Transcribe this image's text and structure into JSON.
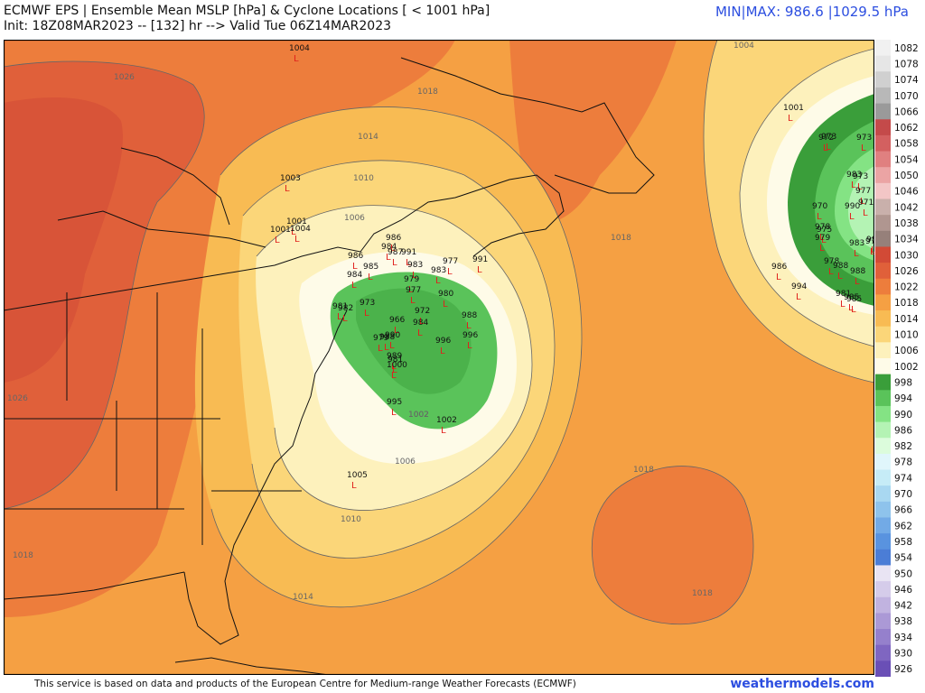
{
  "header": {
    "title": "ECMWF EPS | Ensemble Mean MSLP [hPa] & Cyclone Locations [ < 1001 hPa]",
    "subtitle": "Init: 18Z08MAR2023 -- [132] hr --> Valid Tue 06Z14MAR2023",
    "minmax": "MIN|MAX: 986.6 |1029.5 hPa"
  },
  "footer": {
    "credit": "This service is based on data and products of the European Centre for Medium-range Weather Forecasts (ECMWF)",
    "brand": "weathermodels.com"
  },
  "colors": {
    "accent": "#2c4ee0",
    "low_marker": "#e0201c"
  },
  "legend": {
    "entries": [
      {
        "label": "1082",
        "color": "#f1f1f1"
      },
      {
        "label": "1078",
        "color": "#e6e6e6"
      },
      {
        "label": "1074",
        "color": "#d0d0d0"
      },
      {
        "label": "1070",
        "color": "#b8b8b8"
      },
      {
        "label": "1066",
        "color": "#9a9a9a"
      },
      {
        "label": "1062",
        "color": "#c44a4a"
      },
      {
        "label": "1058",
        "color": "#d36060"
      },
      {
        "label": "1054",
        "color": "#e08080"
      },
      {
        "label": "1050",
        "color": "#eba4a4"
      },
      {
        "label": "1046",
        "color": "#f3c6c6"
      },
      {
        "label": "1042",
        "color": "#c9b0ab"
      },
      {
        "label": "1038",
        "color": "#b09690"
      },
      {
        "label": "1034",
        "color": "#96807a"
      },
      {
        "label": "1030",
        "color": "#d24a36"
      },
      {
        "label": "1026",
        "color": "#e0603a"
      },
      {
        "label": "1022",
        "color": "#ed7d3c"
      },
      {
        "label": "1018",
        "color": "#f5a043"
      },
      {
        "label": "1014",
        "color": "#f8bb53"
      },
      {
        "label": "1010",
        "color": "#fbd679"
      },
      {
        "label": "1006",
        "color": "#fdf1bc"
      },
      {
        "label": "1002",
        "color": "#fefbe8"
      },
      {
        "label": "998",
        "color": "#3a9e3a"
      },
      {
        "label": "994",
        "color": "#5ac35a"
      },
      {
        "label": "990",
        "color": "#84e384"
      },
      {
        "label": "986",
        "color": "#b4f3b4"
      },
      {
        "label": "982",
        "color": "#dcfcdc"
      },
      {
        "label": "978",
        "color": "#e0f6fb"
      },
      {
        "label": "974",
        "color": "#c6ecf7"
      },
      {
        "label": "970",
        "color": "#a9d8f1"
      },
      {
        "label": "966",
        "color": "#8ec3ec"
      },
      {
        "label": "962",
        "color": "#72aae6"
      },
      {
        "label": "958",
        "color": "#5993df"
      },
      {
        "label": "954",
        "color": "#4b7dd6"
      },
      {
        "label": "950",
        "color": "#e9e4f3"
      },
      {
        "label": "946",
        "color": "#d5ccea"
      },
      {
        "label": "942",
        "color": "#c1b3e0"
      },
      {
        "label": "938",
        "color": "#ab99d6"
      },
      {
        "label": "934",
        "color": "#9580cc"
      },
      {
        "label": "930",
        "color": "#7f66c1"
      },
      {
        "label": "926",
        "color": "#6a4fb6"
      }
    ]
  },
  "isobar_labels": [
    "1026",
    "1018",
    "1014",
    "1010",
    "1006",
    "1002",
    "1004",
    "1018",
    "1018",
    "1018",
    "1010",
    "1014",
    "1006",
    "1002",
    "1026",
    "1018"
  ],
  "low_centers": [
    "1004",
    "1003",
    "1001",
    "1004",
    "1001",
    "984",
    "985",
    "986",
    "991",
    "987",
    "986",
    "983",
    "979",
    "983",
    "977",
    "991",
    "984",
    "980",
    "981",
    "977",
    "982",
    "973",
    "972",
    "966",
    "988",
    "984",
    "996",
    "996",
    "979",
    "988",
    "990",
    "989",
    "981",
    "1000",
    "995",
    "1002",
    "1005",
    "1001",
    "973",
    "972",
    "973",
    "983",
    "973",
    "977",
    "970",
    "978",
    "975",
    "990",
    "979",
    "971",
    "983",
    "982",
    "976",
    "988",
    "978",
    "985",
    "986",
    "994",
    "981",
    "985",
    "988"
  ]
}
